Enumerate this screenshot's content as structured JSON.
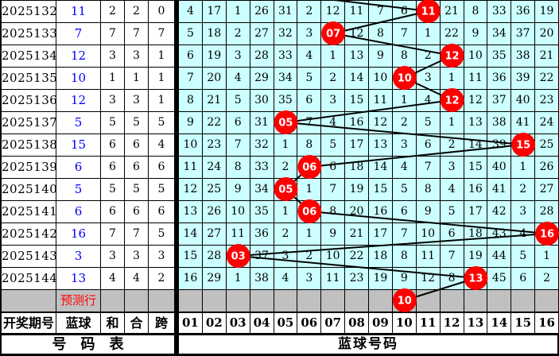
{
  "left_table": {
    "col_headers": [
      "开奖期号",
      "蓝球",
      "和",
      "合",
      "跨"
    ],
    "footer_label": "号　码　表",
    "prediction_label": "预测行",
    "rows": [
      {
        "period": "2025132",
        "blue": "11",
        "sum": "2",
        "combo": "2",
        "span": "0"
      },
      {
        "period": "2025133",
        "blue": "7",
        "sum": "7",
        "combo": "7",
        "span": "7"
      },
      {
        "period": "2025134",
        "blue": "12",
        "sum": "3",
        "combo": "3",
        "span": "1"
      },
      {
        "period": "2025135",
        "blue": "10",
        "sum": "1",
        "combo": "1",
        "span": "1"
      },
      {
        "period": "2025136",
        "blue": "12",
        "sum": "3",
        "combo": "3",
        "span": "1"
      },
      {
        "period": "2025137",
        "blue": "5",
        "sum": "5",
        "combo": "5",
        "span": "5"
      },
      {
        "period": "2025138",
        "blue": "15",
        "sum": "6",
        "combo": "6",
        "span": "4"
      },
      {
        "period": "2025139",
        "blue": "6",
        "sum": "6",
        "combo": "6",
        "span": "6"
      },
      {
        "period": "2025140",
        "blue": "5",
        "sum": "5",
        "combo": "5",
        "span": "5"
      },
      {
        "period": "2025141",
        "blue": "6",
        "sum": "6",
        "combo": "6",
        "span": "6"
      },
      {
        "period": "2025142",
        "blue": "16",
        "sum": "7",
        "combo": "7",
        "span": "5"
      },
      {
        "period": "2025143",
        "blue": "3",
        "sum": "3",
        "combo": "3",
        "span": "3"
      },
      {
        "period": "2025144",
        "blue": "13",
        "sum": "4",
        "combo": "4",
        "span": "2"
      }
    ]
  },
  "grid": {
    "col_headers": [
      "01",
      "02",
      "03",
      "04",
      "05",
      "06",
      "07",
      "08",
      "09",
      "10",
      "11",
      "12",
      "13",
      "14",
      "15",
      "16"
    ],
    "footer_label": "蓝球号码",
    "rows": [
      {
        "cells": [
          "4",
          "17",
          "1",
          "26",
          "31",
          "2",
          "12",
          "11",
          "7",
          "6",
          "",
          "21",
          "8",
          "33",
          "36",
          "19"
        ],
        "ball_col": 11,
        "ball_label": "11"
      },
      {
        "cells": [
          "5",
          "18",
          "2",
          "27",
          "32",
          "3",
          "",
          "12",
          "8",
          "7",
          "1",
          "22",
          "9",
          "34",
          "37",
          "20"
        ],
        "ball_col": 7,
        "ball_label": "07"
      },
      {
        "cells": [
          "6",
          "19",
          "3",
          "28",
          "33",
          "4",
          "1",
          "13",
          "9",
          "8",
          "2",
          "",
          "10",
          "35",
          "38",
          "21"
        ],
        "ball_col": 12,
        "ball_label": "12"
      },
      {
        "cells": [
          "7",
          "20",
          "4",
          "29",
          "34",
          "5",
          "2",
          "14",
          "10",
          "",
          "3",
          "1",
          "11",
          "36",
          "39",
          "22"
        ],
        "ball_col": 10,
        "ball_label": "10"
      },
      {
        "cells": [
          "8",
          "21",
          "5",
          "30",
          "35",
          "6",
          "3",
          "15",
          "11",
          "1",
          "4",
          "",
          "12",
          "37",
          "40",
          "23"
        ],
        "ball_col": 12,
        "ball_label": "12"
      },
      {
        "cells": [
          "9",
          "22",
          "6",
          "31",
          "",
          "7",
          "4",
          "16",
          "12",
          "2",
          "5",
          "1",
          "13",
          "38",
          "41",
          "24"
        ],
        "ball_col": 5,
        "ball_label": "05"
      },
      {
        "cells": [
          "10",
          "23",
          "7",
          "32",
          "1",
          "8",
          "5",
          "17",
          "13",
          "3",
          "6",
          "2",
          "14",
          "39",
          "",
          "25"
        ],
        "ball_col": 15,
        "ball_label": "15"
      },
      {
        "cells": [
          "11",
          "24",
          "8",
          "33",
          "2",
          "",
          "6",
          "18",
          "14",
          "4",
          "7",
          "3",
          "15",
          "40",
          "1",
          "26"
        ],
        "ball_col": 6,
        "ball_label": "06"
      },
      {
        "cells": [
          "12",
          "25",
          "9",
          "34",
          "",
          "1",
          "7",
          "19",
          "15",
          "5",
          "8",
          "4",
          "16",
          "41",
          "2",
          "27"
        ],
        "ball_col": 5,
        "ball_label": "05"
      },
      {
        "cells": [
          "13",
          "26",
          "10",
          "35",
          "1",
          "",
          "8",
          "20",
          "16",
          "6",
          "9",
          "5",
          "17",
          "42",
          "3",
          "28"
        ],
        "ball_col": 6,
        "ball_label": "06"
      },
      {
        "cells": [
          "14",
          "27",
          "11",
          "36",
          "2",
          "1",
          "9",
          "21",
          "17",
          "7",
          "10",
          "6",
          "18",
          "43",
          "4",
          ""
        ],
        "ball_col": 16,
        "ball_label": "16"
      },
      {
        "cells": [
          "15",
          "28",
          "",
          "37",
          "3",
          "2",
          "10",
          "22",
          "18",
          "8",
          "11",
          "7",
          "19",
          "44",
          "5",
          "1"
        ],
        "ball_col": 3,
        "ball_label": "03"
      },
      {
        "cells": [
          "16",
          "29",
          "1",
          "38",
          "4",
          "3",
          "11",
          "23",
          "19",
          "9",
          "12",
          "8",
          "",
          "45",
          "6",
          "2"
        ],
        "ball_col": 13,
        "ball_label": "13"
      }
    ],
    "prediction": {
      "ball_col": 10,
      "ball_label": "10"
    }
  },
  "colors": {
    "cell_bg": "#ccffff",
    "white_bg": "#ffffff",
    "prediction_bg": "#c0c0c0",
    "ball_fill": "#ff0000",
    "ball_text": "#ffffff",
    "blue_number": "#0000ff",
    "prediction_text": "#ff0000",
    "line": "#000000",
    "border": "#000000"
  }
}
